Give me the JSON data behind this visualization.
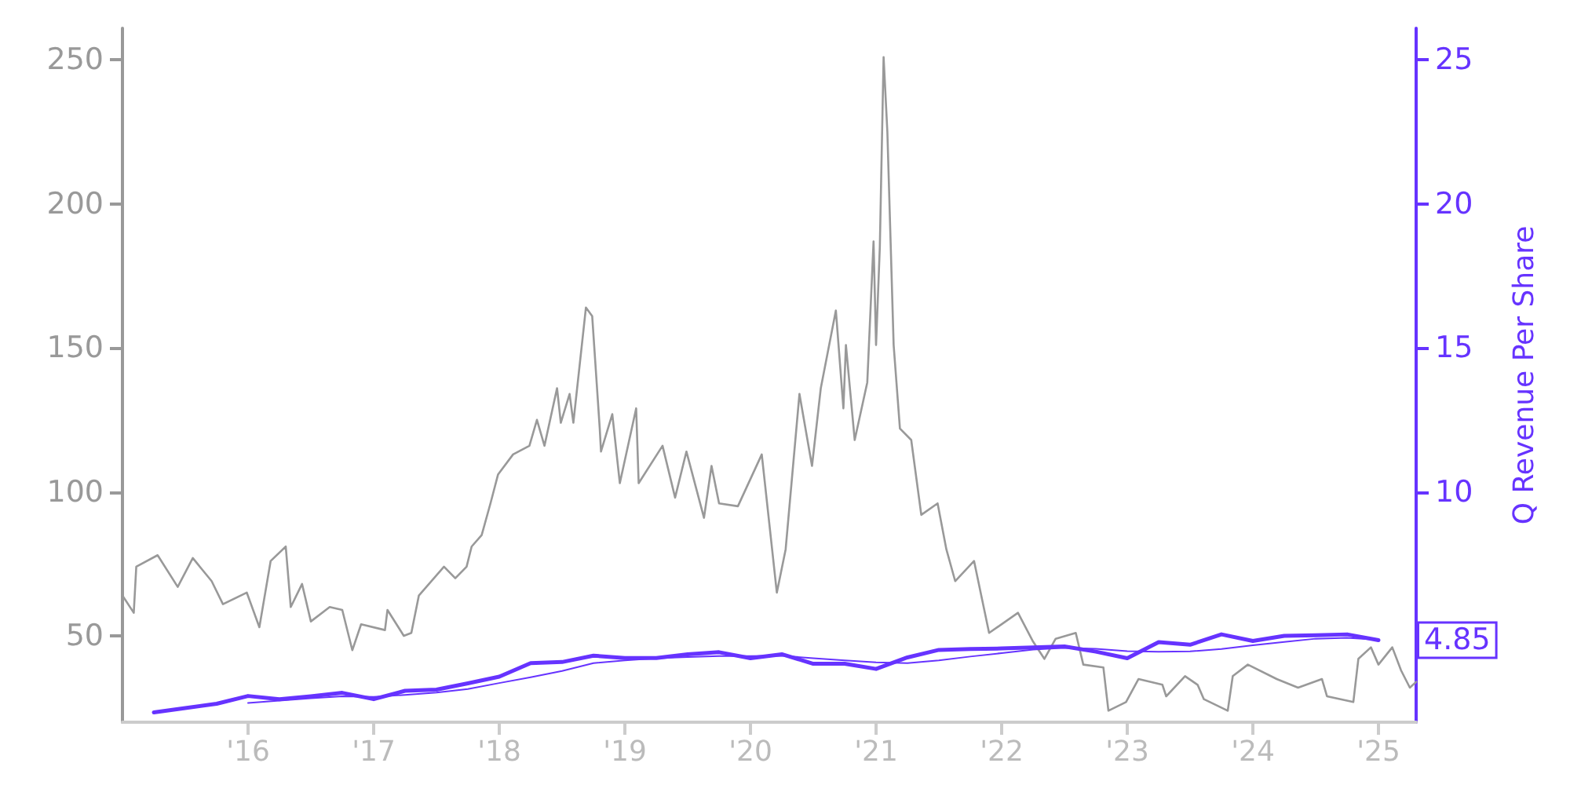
{
  "chart_data": {
    "type": "line",
    "y2label": "Q Revenue Per Share",
    "xlim": [
      2015.0,
      2025.3
    ],
    "xticks": [
      {
        "value": 2016,
        "label": "'16"
      },
      {
        "value": 2017,
        "label": "'17"
      },
      {
        "value": 2018,
        "label": "'18"
      },
      {
        "value": 2019,
        "label": "'19"
      },
      {
        "value": 2020,
        "label": "'20"
      },
      {
        "value": 2021,
        "label": "'21"
      },
      {
        "value": 2022,
        "label": "'22"
      },
      {
        "value": 2023,
        "label": "'23"
      },
      {
        "value": 2024,
        "label": "'24"
      },
      {
        "value": 2025,
        "label": "'25"
      }
    ],
    "ylim": [
      20,
      261
    ],
    "yticks": [
      50,
      100,
      150,
      200,
      250
    ],
    "y2lim": [
      2,
      26.1
    ],
    "y2ticks": [
      10,
      15,
      20,
      25
    ],
    "grid": false,
    "marker": "none",
    "series": [
      {
        "color": "#999999",
        "x": [
          2015.0,
          2015.09,
          2015.11,
          2015.28,
          2015.44,
          2015.56,
          2015.71,
          2015.8,
          2015.99,
          2016.09,
          2016.18,
          2016.3,
          2016.34,
          2016.43,
          2016.5,
          2016.65,
          2016.75,
          2016.83,
          2016.9,
          2017.09,
          2017.11,
          2017.24,
          2017.3,
          2017.36,
          2017.56,
          2017.65,
          2017.74,
          2017.78,
          2017.86,
          2017.93,
          2017.99,
          2018.11,
          2018.24,
          2018.3,
          2018.36,
          2018.46,
          2018.49,
          2018.56,
          2018.59,
          2018.69,
          2018.74,
          2018.8,
          2018.81,
          2018.9,
          2018.96,
          2019.09,
          2019.11,
          2019.3,
          2019.4,
          2019.49,
          2019.63,
          2019.69,
          2019.75,
          2019.9,
          2020.09,
          2020.21,
          2020.28,
          2020.39,
          2020.49,
          2020.56,
          2020.68,
          2020.74,
          2020.76,
          2020.83,
          2020.93,
          2020.98,
          2021.0,
          2021.03,
          2021.06,
          2021.09,
          2021.14,
          2021.19,
          2021.28,
          2021.36,
          2021.49,
          2021.56,
          2021.63,
          2021.78,
          2021.9,
          2022.13,
          2022.25,
          2022.34,
          2022.43,
          2022.59,
          2022.65,
          2022.81,
          2022.85,
          2022.99,
          2023.09,
          2023.28,
          2023.31,
          2023.46,
          2023.56,
          2023.61,
          2023.8,
          2023.84,
          2023.96,
          2024.19,
          2024.36,
          2024.55,
          2024.59,
          2024.8,
          2024.84,
          2024.94,
          2025.0,
          2025.11,
          2025.18,
          2025.25,
          2025.3
        ],
        "values": [
          64,
          58,
          74,
          78,
          67,
          77,
          69,
          61,
          65,
          53,
          76,
          81,
          60,
          68,
          55,
          60,
          59,
          45,
          54,
          52,
          59,
          50,
          51,
          64,
          74,
          70,
          74,
          81,
          85,
          96,
          106,
          113,
          116,
          125,
          116,
          136,
          124,
          134,
          124,
          164,
          161,
          122,
          114,
          127,
          103,
          129,
          103,
          116,
          98,
          114,
          91,
          109,
          96,
          95,
          113,
          65,
          80,
          134,
          109,
          136,
          163,
          129,
          151,
          118,
          138,
          187,
          151,
          185,
          251,
          225,
          151,
          122,
          118,
          92,
          96,
          80,
          69,
          76,
          51,
          58,
          48,
          42,
          49,
          51,
          40,
          39,
          24,
          27,
          35,
          33,
          29,
          36,
          33,
          28,
          24,
          36,
          40,
          35,
          32,
          35,
          29,
          27,
          42,
          46,
          40,
          46,
          38,
          32,
          34
        ]
      },
      {
        "color": "#6633ff",
        "axis": "y2",
        "x": [
          2016.0,
          2016.25,
          2016.5,
          2016.75,
          2017.0,
          2017.25,
          2017.5,
          2017.75,
          2018.0,
          2018.25,
          2018.5,
          2018.75,
          2019.0,
          2019.25,
          2019.5,
          2019.75,
          2020.0,
          2020.25,
          2020.5,
          2020.75,
          2021.0,
          2021.25,
          2021.5,
          2021.75,
          2022.0,
          2022.25,
          2022.5,
          2022.75,
          2023.0,
          2023.25,
          2023.5,
          2023.75,
          2024.0,
          2024.25,
          2024.5,
          2024.75,
          2025.0
        ],
        "values": [
          2.67,
          2.75,
          2.83,
          2.9,
          2.88,
          2.95,
          3.03,
          3.15,
          3.36,
          3.56,
          3.78,
          4.05,
          4.15,
          4.22,
          4.26,
          4.3,
          4.3,
          4.31,
          4.22,
          4.15,
          4.08,
          4.05,
          4.15,
          4.28,
          4.4,
          4.52,
          4.58,
          4.55,
          4.47,
          4.45,
          4.46,
          4.54,
          4.67,
          4.79,
          4.9,
          4.93,
          4.86
        ]
      },
      {
        "color": "#6633ff",
        "axis": "y2",
        "x": [
          2015.25,
          2015.5,
          2015.75,
          2016.0,
          2016.25,
          2016.5,
          2016.75,
          2017.0,
          2017.25,
          2017.5,
          2017.75,
          2018.0,
          2018.25,
          2018.5,
          2018.75,
          2019.0,
          2019.25,
          2019.5,
          2019.75,
          2020.0,
          2020.25,
          2020.5,
          2020.75,
          2021.0,
          2021.25,
          2021.5,
          2021.75,
          2022.0,
          2022.25,
          2022.5,
          2022.75,
          2023.0,
          2023.25,
          2023.5,
          2023.75,
          2024.0,
          2024.25,
          2024.5,
          2024.75,
          2025.0
        ],
        "values": [
          2.34,
          2.49,
          2.64,
          2.91,
          2.8,
          2.9,
          3.02,
          2.8,
          3.09,
          3.13,
          3.35,
          3.58,
          4.05,
          4.09,
          4.31,
          4.23,
          4.23,
          4.36,
          4.43,
          4.22,
          4.36,
          4.03,
          4.03,
          3.85,
          4.25,
          4.51,
          4.54,
          4.56,
          4.6,
          4.63,
          4.45,
          4.22,
          4.78,
          4.69,
          5.05,
          4.82,
          5.0,
          5.02,
          5.05,
          4.85
        ],
        "value_labels": [
          null,
          null,
          null,
          null,
          null,
          null,
          null,
          null,
          null,
          null,
          null,
          null,
          null,
          null,
          null,
          null,
          null,
          null,
          null,
          null,
          null,
          null,
          null,
          null,
          null,
          null,
          null,
          null,
          null,
          null,
          null,
          null,
          null,
          null,
          null,
          null,
          null,
          null,
          null,
          "4.85"
        ]
      }
    ]
  }
}
